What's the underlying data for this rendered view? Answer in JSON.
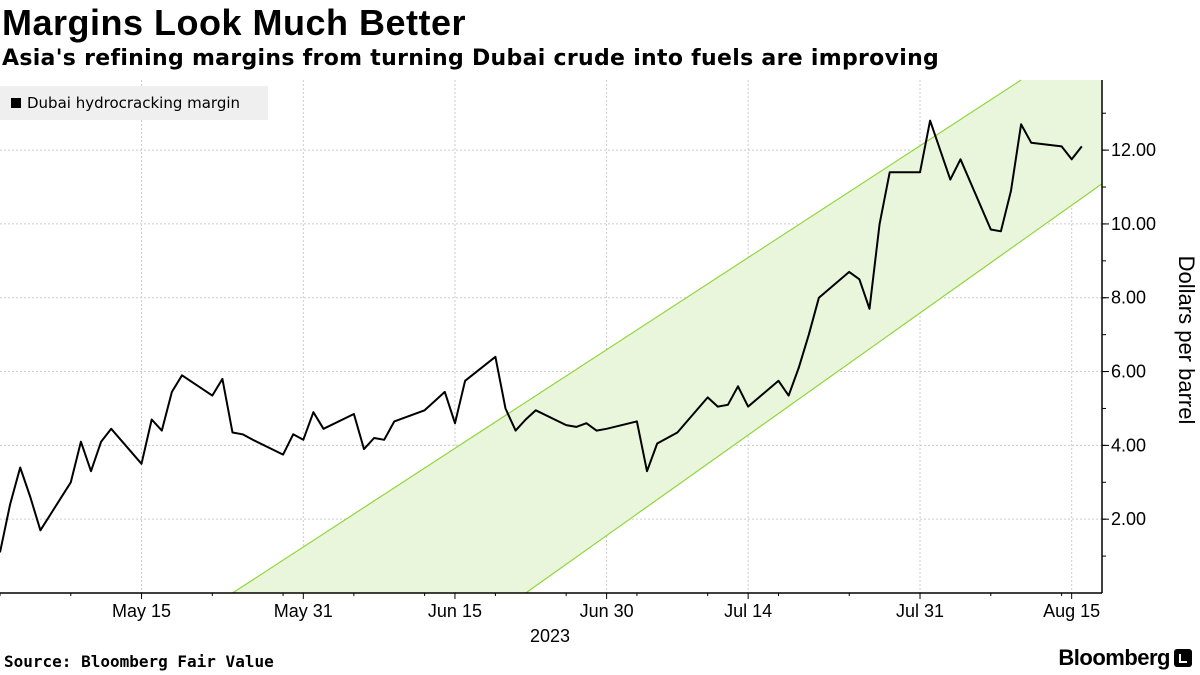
{
  "title": "Margins Look Much Better",
  "subtitle": "Asia's refining margins from turning Dubai crude into fuels are improving",
  "source": "Source: Bloomberg Fair Value",
  "brand": "Bloomberg",
  "colors": {
    "line": "#000000",
    "band_fill": "#eaf6dc",
    "band_edge": "#8fd63a",
    "grid": "#cccccc"
  },
  "chart_data": {
    "type": "line",
    "x_axis": {
      "year_label": "2023",
      "tick_labels": [
        "May 15",
        "May 31",
        "Jun 15",
        "Jun 30",
        "Jul 14",
        "Jul 31",
        "Aug 15"
      ]
    },
    "y_axis": {
      "label": "Dollars per barrel",
      "position": "right",
      "ylim": [
        0,
        13.9
      ],
      "tick_values": [
        2,
        4,
        6,
        8,
        10,
        12
      ],
      "tick_labels": [
        "2.00",
        "4.00",
        "6.00",
        "8.00",
        "10.00",
        "12.00"
      ]
    },
    "grid": true,
    "legend_position": "top-left",
    "series": [
      {
        "name": "Dubai hydrocracking margin",
        "x": [
          "2023-05-01",
          "2023-05-02",
          "2023-05-03",
          "2023-05-04",
          "2023-05-05",
          "2023-05-08",
          "2023-05-09",
          "2023-05-10",
          "2023-05-11",
          "2023-05-12",
          "2023-05-15",
          "2023-05-16",
          "2023-05-17",
          "2023-05-18",
          "2023-05-19",
          "2023-05-22",
          "2023-05-23",
          "2023-05-24",
          "2023-05-25",
          "2023-05-26",
          "2023-05-29",
          "2023-05-30",
          "2023-05-31",
          "2023-06-01",
          "2023-06-02",
          "2023-06-05",
          "2023-06-06",
          "2023-06-07",
          "2023-06-08",
          "2023-06-09",
          "2023-06-12",
          "2023-06-13",
          "2023-06-14",
          "2023-06-15",
          "2023-06-16",
          "2023-06-19",
          "2023-06-20",
          "2023-06-21",
          "2023-06-22",
          "2023-06-23",
          "2023-06-26",
          "2023-06-27",
          "2023-06-28",
          "2023-06-29",
          "2023-06-30",
          "2023-07-03",
          "2023-07-04",
          "2023-07-05",
          "2023-07-06",
          "2023-07-07",
          "2023-07-10",
          "2023-07-11",
          "2023-07-12",
          "2023-07-13",
          "2023-07-14",
          "2023-07-17",
          "2023-07-18",
          "2023-07-19",
          "2023-07-20",
          "2023-07-21",
          "2023-07-24",
          "2023-07-25",
          "2023-07-26",
          "2023-07-27",
          "2023-07-28",
          "2023-07-31",
          "2023-08-01",
          "2023-08-02",
          "2023-08-03",
          "2023-08-04",
          "2023-08-07",
          "2023-08-08",
          "2023-08-09",
          "2023-08-10",
          "2023-08-11",
          "2023-08-14",
          "2023-08-15",
          "2023-08-16"
        ],
        "values": [
          1.1,
          2.4,
          3.4,
          2.6,
          1.7,
          3.0,
          4.1,
          3.3,
          4.1,
          4.45,
          3.5,
          4.7,
          4.4,
          5.45,
          5.9,
          5.35,
          5.8,
          4.35,
          4.3,
          4.15,
          3.75,
          4.3,
          4.15,
          4.9,
          4.45,
          4.85,
          3.9,
          4.2,
          4.15,
          4.65,
          4.95,
          5.2,
          5.45,
          4.6,
          5.75,
          6.4,
          5.0,
          4.4,
          4.7,
          4.95,
          4.55,
          4.5,
          4.6,
          4.4,
          4.45,
          4.65,
          3.3,
          4.05,
          4.2,
          4.35,
          5.3,
          5.05,
          5.1,
          5.6,
          5.05,
          5.75,
          5.35,
          6.1,
          7.0,
          8.0,
          8.7,
          8.5,
          7.7,
          10.0,
          11.4,
          11.4,
          12.8,
          12.0,
          11.2,
          11.75,
          9.85,
          9.8,
          10.9,
          12.7,
          12.2,
          12.1,
          11.75,
          12.1
        ]
      }
    ],
    "band": {
      "upper": [
        [
          "2023-05-24",
          0.0
        ],
        [
          "2023-08-10",
          13.9
        ]
      ],
      "lower": [
        [
          "2023-06-22",
          0.0
        ],
        [
          "2023-08-16",
          10.7
        ]
      ]
    }
  }
}
